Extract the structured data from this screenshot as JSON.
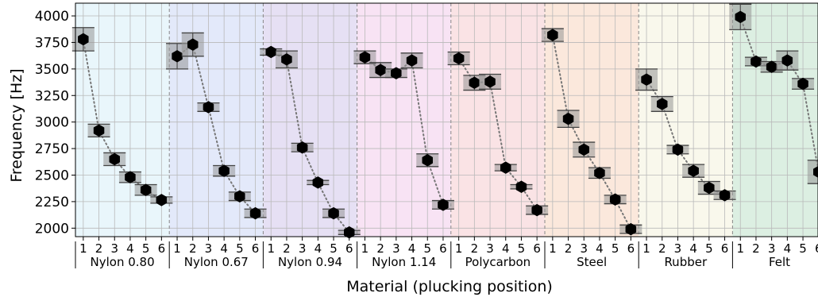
{
  "chart_data": {
    "type": "scatter",
    "ylabel": "Frequency [Hz]",
    "xlabel": "Material (plucking position)",
    "ylim": [
      1920,
      4120
    ],
    "yticks": [
      2000,
      2250,
      2500,
      2750,
      3000,
      3250,
      3500,
      3750,
      4000
    ],
    "grid": true,
    "positions": [
      "1",
      "2",
      "3",
      "4",
      "5",
      "6"
    ],
    "groups": [
      {
        "name": "Nylon 0.80",
        "color": "#e9f6fb",
        "values": [
          3780,
          2920,
          2650,
          2480,
          2360,
          2265
        ],
        "errors": [
          110,
          60,
          60,
          50,
          50,
          30
        ]
      },
      {
        "name": "Nylon 0.67",
        "color": "#e3e9fa",
        "values": [
          3620,
          3730,
          3140,
          2540,
          2300,
          2140
        ],
        "errors": [
          120,
          110,
          40,
          50,
          40,
          40
        ]
      },
      {
        "name": "Nylon 0.94",
        "color": "#e6e0f4",
        "values": [
          3660,
          3590,
          2760,
          2430,
          2140,
          1960
        ],
        "errors": [
          30,
          80,
          40,
          20,
          40,
          20
        ]
      },
      {
        "name": "Nylon 1.14",
        "color": "#f8e3f4",
        "values": [
          3610,
          3490,
          3460,
          3580,
          2640,
          2220
        ],
        "errors": [
          60,
          70,
          40,
          70,
          60,
          40
        ]
      },
      {
        "name": "Polycarbon",
        "color": "#fae3e5",
        "values": [
          3600,
          3370,
          3380,
          2570,
          2390,
          2170
        ],
        "errors": [
          60,
          70,
          70,
          30,
          20,
          40
        ]
      },
      {
        "name": "Steel",
        "color": "#fbe8dc",
        "values": [
          3820,
          3030,
          2740,
          2520,
          2270,
          1990
        ],
        "errors": [
          60,
          80,
          70,
          50,
          40,
          40
        ]
      },
      {
        "name": "Rubber",
        "color": "#f9f8ec",
        "values": [
          3400,
          3170,
          2740,
          2540,
          2380,
          2310
        ],
        "errors": [
          100,
          70,
          40,
          60,
          60,
          40
        ]
      },
      {
        "name": "Felt",
        "color": "#dcefe2",
        "values": [
          3990,
          3570,
          3520,
          3580,
          3360,
          2530
        ],
        "errors": [
          120,
          40,
          50,
          90,
          50,
          110
        ]
      }
    ]
  }
}
